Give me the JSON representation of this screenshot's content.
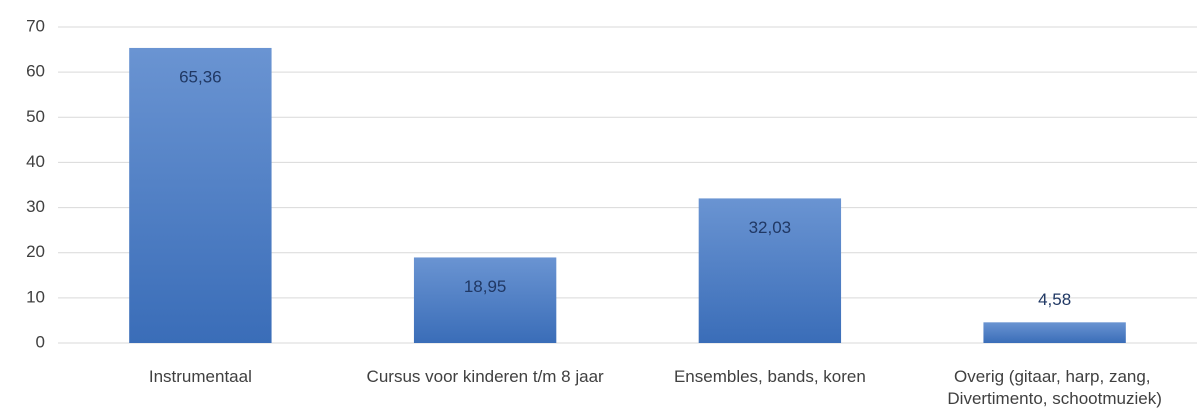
{
  "chart_data": {
    "type": "bar",
    "categories": [
      "Instrumentaal",
      "Cursus voor kinderen t/m 8 jaar",
      "Ensembles, bands, koren",
      "Overig (gitaar, harp, zang, Divertimento, schootmuziek)"
    ],
    "values": [
      65.36,
      18.95,
      32.03,
      4.58
    ],
    "value_labels": [
      "65,36",
      "18,95",
      "32,03",
      "4,58"
    ],
    "color": "#4a7cc4",
    "ylim": [
      0,
      70
    ],
    "yticks": [
      0,
      10,
      20,
      30,
      40,
      50,
      60,
      70
    ],
    "grid": true
  }
}
